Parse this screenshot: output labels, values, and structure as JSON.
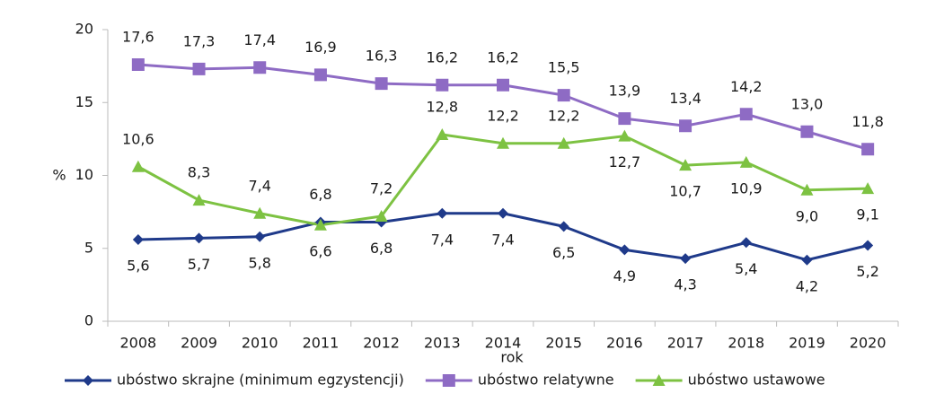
{
  "chart_data": {
    "type": "line",
    "ylabel": "%",
    "xlabel": "rok",
    "categories": [
      "2008",
      "2009",
      "2010",
      "2011",
      "2012",
      "2013",
      "2014",
      "2015",
      "2016",
      "2017",
      "2018",
      "2019",
      "2020"
    ],
    "ylim": [
      0,
      20
    ],
    "yticks": [
      0,
      5,
      10,
      15,
      20
    ],
    "series": [
      {
        "name": "ubóstwo skrajne (minimum egzystencji)",
        "color": "#1f3a8a",
        "marker": "diamond",
        "values": [
          5.6,
          5.7,
          5.8,
          6.8,
          6.8,
          7.4,
          7.4,
          6.5,
          4.9,
          4.3,
          5.4,
          4.2,
          5.2
        ],
        "value_labels": [
          "5,6",
          "5,7",
          "5,8",
          "6,8",
          "6,8",
          "7,4",
          "7,4",
          "6,5",
          "4,9",
          "4,3",
          "5,4",
          "4,2",
          "5,2"
        ]
      },
      {
        "name": "ubóstwo relatywne",
        "color": "#8e6bc4",
        "marker": "square",
        "values": [
          17.6,
          17.3,
          17.4,
          16.9,
          16.3,
          16.2,
          16.2,
          15.5,
          13.9,
          13.4,
          14.2,
          13.0,
          11.8
        ],
        "value_labels": [
          "17,6",
          "17,3",
          "17,4",
          "16,9",
          "16,3",
          "16,2",
          "16,2",
          "15,5",
          "13,9",
          "13,4",
          "14,2",
          "13,0",
          "11,8"
        ]
      },
      {
        "name": "ubóstwo ustawowe",
        "color": "#7dc242",
        "marker": "triangle",
        "values": [
          10.6,
          8.3,
          7.4,
          6.6,
          7.2,
          12.8,
          12.2,
          12.2,
          12.7,
          10.7,
          10.9,
          9.0,
          9.1
        ],
        "value_labels": [
          "10,6",
          "8,3",
          "7,4",
          "6,6",
          "7,2",
          "12,8",
          "12,2",
          "12,2",
          "12,7",
          "10,7",
          "10,9",
          "9,0",
          "9,1"
        ]
      }
    ]
  }
}
